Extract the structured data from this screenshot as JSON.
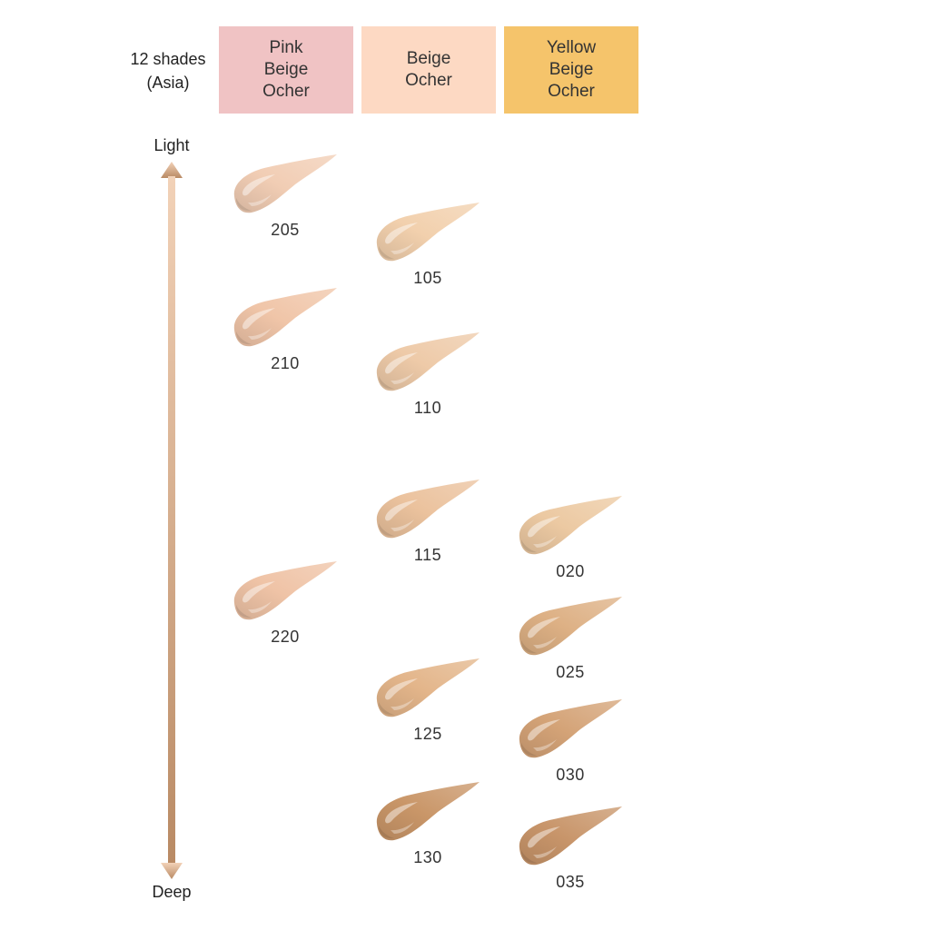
{
  "title": {
    "line1": "12 shades",
    "line2": "(Asia)"
  },
  "columns": [
    {
      "key": "pink",
      "lines": [
        "Pink",
        "Beige",
        "Ocher"
      ],
      "color": "#f0c3c4"
    },
    {
      "key": "beige",
      "lines": [
        "Beige",
        "Ocher"
      ],
      "color": "#fdd9c3"
    },
    {
      "key": "yellow",
      "lines": [
        "Yellow",
        "Beige",
        "Ocher"
      ],
      "color": "#f5c46b"
    }
  ],
  "axis": {
    "top_label": "Light",
    "bottom_label": "Deep",
    "top_color": "#f2d2b8",
    "bottom_color": "#b98a64"
  },
  "shades": {
    "s205": {
      "label": "205",
      "color": "#f1cdb4"
    },
    "s210": {
      "label": "210",
      "color": "#f0c5a8"
    },
    "s220": {
      "label": "220",
      "color": "#efc3a6"
    },
    "s105": {
      "label": "105",
      "color": "#f2d0ad"
    },
    "s110": {
      "label": "110",
      "color": "#eecaa8"
    },
    "s115": {
      "label": "115",
      "color": "#ebc29d"
    },
    "s125": {
      "label": "125",
      "color": "#e3b58a"
    },
    "s130": {
      "label": "130",
      "color": "#c99668"
    },
    "s020": {
      "label": "020",
      "color": "#ecc9a2"
    },
    "s025": {
      "label": "025",
      "color": "#ddb084"
    },
    "s030": {
      "label": "030",
      "color": "#d4a377"
    },
    "s035": {
      "label": "035",
      "color": "#c8956a"
    }
  }
}
